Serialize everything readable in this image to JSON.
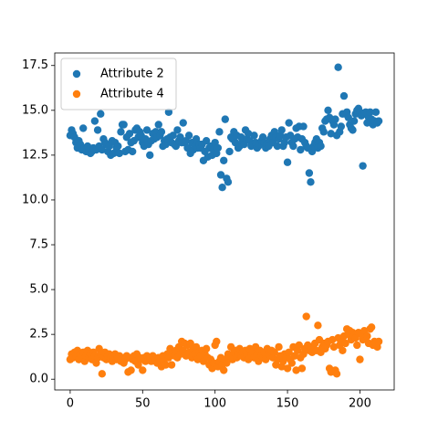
{
  "chart_data": {
    "type": "scatter",
    "legend": "upper left",
    "xlim": [
      -10.65,
      223.65
    ],
    "ylim": [
      -0.6,
      18.2
    ],
    "xticks": [
      0,
      50,
      100,
      150,
      200
    ],
    "yticks": [
      {
        "value": 0,
        "label": "0.0"
      },
      2.5,
      {
        "value": 5,
        "label": "5.0"
      },
      7.5,
      {
        "value": 10,
        "label": "10.0"
      },
      12.5,
      {
        "value": 15,
        "label": "15.0"
      },
      17.5
    ],
    "x": [
      0,
      1,
      2,
      3,
      4,
      5,
      6,
      7,
      8,
      9,
      10,
      11,
      12,
      13,
      14,
      15,
      16,
      17,
      18,
      19,
      20,
      21,
      22,
      23,
      24,
      25,
      26,
      27,
      28,
      29,
      30,
      31,
      32,
      33,
      34,
      35,
      36,
      37,
      38,
      39,
      40,
      41,
      42,
      43,
      44,
      45,
      46,
      47,
      48,
      49,
      50,
      51,
      52,
      53,
      54,
      55,
      56,
      57,
      58,
      59,
      60,
      61,
      62,
      63,
      64,
      65,
      66,
      67,
      68,
      69,
      70,
      71,
      72,
      73,
      74,
      75,
      76,
      77,
      78,
      79,
      80,
      81,
      82,
      83,
      84,
      85,
      86,
      87,
      88,
      89,
      90,
      91,
      92,
      93,
      94,
      95,
      96,
      97,
      98,
      99,
      100,
      101,
      102,
      103,
      104,
      105,
      106,
      107,
      108,
      109,
      110,
      111,
      112,
      113,
      114,
      115,
      116,
      117,
      118,
      119,
      120,
      121,
      122,
      123,
      124,
      125,
      126,
      127,
      128,
      129,
      130,
      131,
      132,
      133,
      134,
      135,
      136,
      137,
      138,
      139,
      140,
      141,
      142,
      143,
      144,
      145,
      146,
      147,
      148,
      149,
      150,
      151,
      152,
      153,
      154,
      155,
      156,
      157,
      158,
      159,
      160,
      161,
      162,
      163,
      164,
      165,
      166,
      167,
      168,
      169,
      170,
      171,
      172,
      173,
      174,
      175,
      176,
      177,
      178,
      179,
      180,
      181,
      182,
      183,
      184,
      185,
      186,
      187,
      188,
      189,
      190,
      191,
      192,
      193,
      194,
      195,
      196,
      197,
      198,
      199,
      200,
      201,
      202,
      203,
      204,
      205,
      206,
      207,
      208,
      209,
      210,
      211,
      212,
      213
    ],
    "series": [
      {
        "name": "Attribute 2",
        "color": "#1f77b4",
        "values": [
          13.6,
          13.9,
          13.7,
          13.5,
          13.2,
          12.9,
          13.3,
          13.1,
          12.8,
          14.0,
          12.9,
          12.7,
          13.0,
          12.8,
          12.6,
          12.7,
          12.9,
          14.4,
          12.8,
          13.9,
          13.0,
          14.8,
          12.8,
          13.4,
          13.2,
          13.1,
          12.7,
          13.0,
          12.5,
          13.3,
          12.6,
          13.2,
          12.9,
          13.0,
          12.6,
          13.8,
          14.2,
          14.2,
          12.7,
          13.5,
          12.8,
          13.7,
          13.2,
          12.7,
          13.3,
          13.9,
          14.0,
          13.5,
          13.8,
          13.6,
          13.2,
          13.0,
          13.4,
          13.9,
          13.1,
          12.5,
          13.3,
          13.7,
          13.4,
          13.8,
          13.5,
          14.2,
          13.6,
          13.8,
          13.0,
          13.3,
          13.1,
          13.4,
          14.9,
          13.5,
          13.2,
          13.6,
          13.1,
          13.0,
          13.9,
          13.3,
          13.5,
          13.2,
          14.3,
          13.2,
          13.3,
          12.9,
          13.6,
          12.6,
          13.2,
          12.8,
          13.0,
          13.4,
          12.9,
          13.1,
          12.9,
          13.1,
          12.2,
          12.7,
          13.3,
          12.4,
          12.9,
          13.0,
          12.5,
          12.8,
          13.2,
          12.6,
          12.9,
          13.8,
          11.4,
          10.7,
          12.2,
          14.5,
          11.2,
          11.0,
          12.7,
          13.5,
          13.4,
          13.8,
          13.2,
          13.6,
          12.9,
          13.0,
          13.5,
          13.3,
          13.1,
          13.9,
          13.4,
          13.7,
          13.3,
          13.0,
          13.1,
          13.6,
          13.2,
          12.9,
          13.0,
          13.1,
          13.3,
          13.5,
          13.2,
          12.9,
          13.1,
          13.0,
          13.4,
          13.6,
          13.2,
          13.8,
          13.5,
          13.0,
          13.4,
          13.6,
          13.9,
          13.0,
          13.2,
          13.5,
          12.1,
          14.3,
          13.6,
          13.2,
          13.0,
          13.4,
          14.0,
          13.5,
          14.1,
          12.8,
          13.4,
          14.1,
          13.2,
          13.0,
          12.9,
          11.5,
          11.0,
          12.7,
          13.0,
          13.2,
          13.4,
          12.9,
          13.2,
          13.0,
          14.0,
          13.8,
          14.4,
          14.5,
          15.0,
          14.6,
          13.7,
          14.4,
          14.2,
          14.5,
          13.6,
          17.4,
          13.8,
          14.1,
          14.8,
          15.8,
          14.8,
          14.9,
          14.6,
          14.2,
          14.0,
          13.9,
          14.4,
          14.8,
          15.0,
          15.1,
          14.9,
          14.7,
          11.9,
          14.8,
          14.9,
          14.3,
          14.6,
          14.9,
          14.5,
          14.2,
          14.4,
          14.9,
          14.3,
          14.4
        ]
      },
      {
        "name": "Attribute 4",
        "color": "#ff7f0e",
        "values": [
          1.1,
          1.4,
          1.2,
          1.5,
          1.3,
          1.6,
          1.1,
          1.4,
          1.2,
          1.5,
          1.0,
          1.3,
          1.6,
          1.2,
          1.4,
          1.1,
          1.5,
          1.3,
          0.9,
          1.2,
          1.7,
          1.4,
          0.3,
          1.2,
          1.5,
          1.1,
          1.3,
          1.4,
          1.2,
          1.0,
          1.3,
          1.4,
          1.1,
          1.2,
          1.3,
          1.0,
          1.2,
          0.9,
          1.1,
          1.3,
          0.4,
          1.2,
          0.5,
          1.1,
          1.3,
          1.0,
          1.4,
          0.8,
          1.2,
          1.1,
          0.5,
          1.2,
          1.0,
          1.3,
          1.1,
          1.2,
          1.0,
          1.3,
          1.2,
          1.1,
          0.9,
          1.2,
          1.0,
          0.7,
          1.3,
          1.1,
          0.8,
          1.4,
          1.2,
          1.7,
          0.8,
          1.5,
          1.3,
          1.6,
          1.2,
          1.8,
          1.4,
          2.1,
          1.6,
          2.0,
          1.3,
          1.9,
          1.5,
          2.0,
          1.2,
          1.7,
          1.4,
          1.8,
          1.1,
          1.5,
          1.3,
          1.6,
          1.0,
          1.4,
          1.7,
          1.2,
          0.8,
          1.1,
          0.6,
          0.9,
          1.9,
          2.1,
          0.7,
          1.0,
          1.2,
          0.8,
          0.5,
          1.1,
          0.9,
          1.4,
          1.3,
          1.8,
          1.1,
          1.5,
          1.6,
          1.2,
          1.4,
          1.7,
          1.3,
          1.5,
          1.2,
          1.6,
          1.4,
          1.1,
          1.7,
          1.3,
          1.5,
          1.2,
          1.8,
          1.4,
          1.0,
          1.6,
          1.3,
          1.2,
          1.5,
          1.1,
          1.7,
          1.4,
          1.3,
          1.6,
          1.2,
          1.5,
          0.8,
          1.1,
          1.8,
          1.3,
          0.7,
          1.0,
          1.4,
          1.2,
          0.6,
          1.5,
          1.1,
          0.9,
          1.8,
          1.3,
          0.5,
          1.6,
          1.9,
          1.2,
          0.6,
          1.4,
          1.7,
          3.5,
          1.9,
          1.6,
          1.8,
          1.5,
          1.7,
          2.0,
          1.6,
          3.0,
          2.2,
          1.5,
          1.8,
          2.0,
          1.7,
          1.9,
          2.1,
          0.6,
          0.4,
          2.2,
          1.8,
          0.5,
          0.3,
          2.3,
          1.9,
          2.1,
          1.6,
          2.4,
          2.0,
          2.8,
          2.5,
          2.7,
          2.2,
          2.6,
          2.4,
          2.3,
          1.9,
          2.6,
          1.1,
          2.5,
          2.2,
          2.7,
          2.3,
          2.4,
          2.0,
          2.8,
          2.9,
          1.9,
          2.1,
          2.0,
          1.8,
          2.1
        ]
      }
    ]
  }
}
